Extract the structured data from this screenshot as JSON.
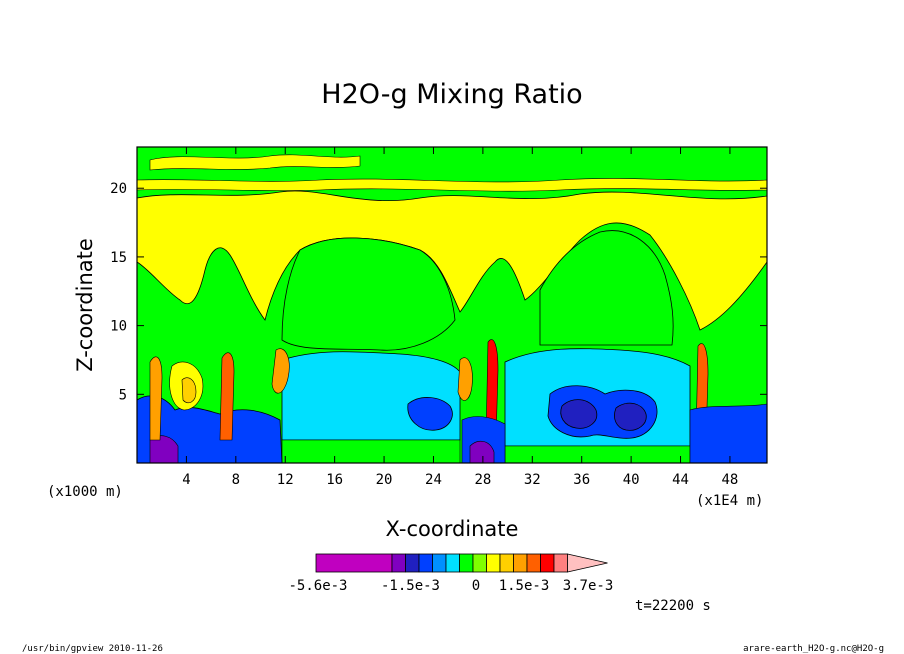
{
  "chart_data": {
    "type": "heatmap",
    "title": "H2O-g Mixing Ratio",
    "xlabel": "X-coordinate",
    "ylabel": "Z-coordinate",
    "x_unit": "(x1E4 m)",
    "y_unit": "(x1000 m)",
    "xlim": [
      0,
      51
    ],
    "ylim": [
      0,
      23
    ],
    "x_ticks": [
      "4",
      "8",
      "12",
      "16",
      "20",
      "24",
      "28",
      "32",
      "36",
      "40",
      "44",
      "48"
    ],
    "y_ticks": [
      "5",
      "10",
      "15",
      "20"
    ],
    "colorbar": {
      "colors": [
        "#c000c0",
        "#8000c0",
        "#2020c0",
        "#0040ff",
        "#0090ff",
        "#00e0ff",
        "#00ff00",
        "#80ff00",
        "#ffff00",
        "#ffd000",
        "#ffa000",
        "#ff6000",
        "#ff0000",
        "#ff8080",
        "#ffc0c0"
      ],
      "labels": [
        "-5.6e-3",
        "-1.5e-3",
        "0",
        "1.5e-3",
        "3.7e-3"
      ]
    },
    "time_label": "t=22200 s"
  },
  "footer": {
    "left": "/usr/bin/gpview  2010-11-26",
    "right": "arare-earth_H2O-g.nc@H2O-g"
  }
}
